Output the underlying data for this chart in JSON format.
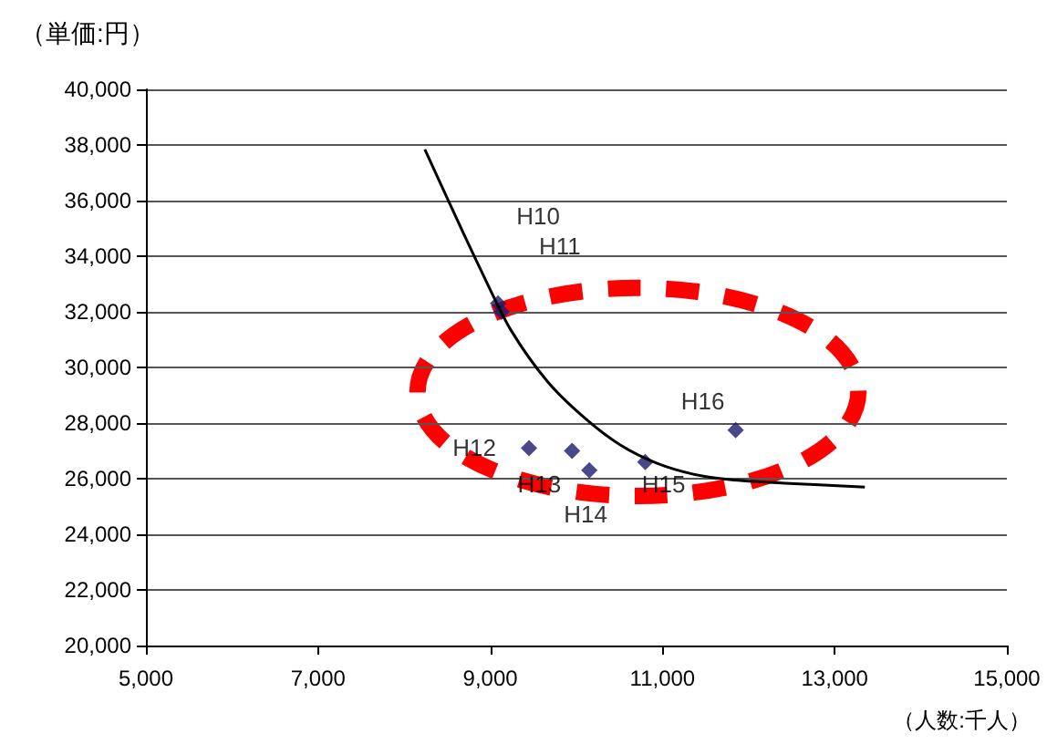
{
  "chart_data": {
    "type": "scatter",
    "xlabel": "（人数:千人）",
    "ylabel": "（単価:円）",
    "xlim": [
      5000,
      15000
    ],
    "xticks": [
      {
        "value": 5000,
        "label": "5,000"
      },
      {
        "value": 7000,
        "label": "7,000"
      },
      {
        "value": 9000,
        "label": "9,000"
      },
      {
        "value": 11000,
        "label": "11,000"
      },
      {
        "value": 13000,
        "label": "13,000"
      },
      {
        "value": 15000,
        "label": "15,000"
      }
    ],
    "ylim": [
      20000,
      40000
    ],
    "yticks": [
      {
        "value": 20000,
        "label": "20,000"
      },
      {
        "value": 22000,
        "label": "22,000"
      },
      {
        "value": 24000,
        "label": "24,000"
      },
      {
        "value": 26000,
        "label": "26,000"
      },
      {
        "value": 28000,
        "label": "28,000"
      },
      {
        "value": 30000,
        "label": "30,000"
      },
      {
        "value": 32000,
        "label": "32,000"
      },
      {
        "value": 34000,
        "label": "34,000"
      },
      {
        "value": 36000,
        "label": "36,000"
      },
      {
        "value": 38000,
        "label": "38,000"
      },
      {
        "value": 40000,
        "label": "40,000"
      }
    ],
    "grid": "y",
    "marker": "diamond",
    "series": [
      {
        "color": "#1a1a6e",
        "x": [
          9090,
          9130,
          9450,
          9950,
          10150,
          10800,
          11850
        ],
        "values": [
          32300,
          32000,
          27100,
          27000,
          26300,
          26600,
          27750
        ],
        "value_labels": [
          "H10",
          "H11",
          "H12",
          "H13",
          "H14",
          "H15",
          "H16"
        ]
      },
      {
        "type": "line",
        "color": "#000000",
        "marker": "none",
        "x": [
          8240,
          8600,
          8920,
          9240,
          9660,
          10090,
          10510,
          10930,
          11360,
          11780,
          12420,
          13350
        ],
        "values": [
          37840,
          35410,
          33310,
          31340,
          29510,
          28200,
          27210,
          26560,
          26160,
          25970,
          25840,
          25700
        ]
      }
    ]
  }
}
